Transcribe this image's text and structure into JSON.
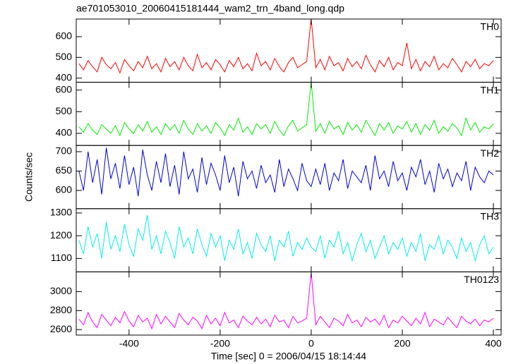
{
  "chart_data": {
    "type": "line",
    "title": "ae701053010_20060415181444_wam2_trn_4band_long.qdp",
    "x_label": "Time [sec] 0 = 2006/04/15 18:14:44",
    "y_label": "Counts/sec",
    "xlim": [
      -516,
      417
    ],
    "xticks": [
      -400,
      -200,
      0,
      200,
      400
    ],
    "x": [
      -510,
      -500,
      -490,
      -480,
      -470,
      -460,
      -450,
      -440,
      -430,
      -420,
      -410,
      -400,
      -390,
      -380,
      -370,
      -360,
      -350,
      -340,
      -330,
      -320,
      -310,
      -300,
      -290,
      -280,
      -270,
      -260,
      -250,
      -240,
      -230,
      -220,
      -210,
      -200,
      -190,
      -180,
      -170,
      -160,
      -150,
      -140,
      -130,
      -120,
      -110,
      -100,
      -90,
      -80,
      -70,
      -60,
      -50,
      -40,
      -30,
      -20,
      -10,
      0,
      10,
      20,
      30,
      40,
      50,
      60,
      70,
      80,
      90,
      100,
      110,
      120,
      130,
      140,
      150,
      160,
      170,
      180,
      190,
      200,
      210,
      220,
      230,
      240,
      250,
      260,
      270,
      280,
      290,
      300,
      310,
      320,
      330,
      340,
      350,
      360,
      370,
      380,
      390,
      400
    ],
    "panels": [
      {
        "name": "TH0",
        "color": "#ff0000",
        "ylim": [
          380,
          685
        ],
        "yticks": [
          400,
          500,
          600
        ],
        "values": [
          470,
          440,
          485,
          455,
          430,
          500,
          465,
          445,
          475,
          425,
          490,
          460,
          435,
          480,
          450,
          505,
          445,
          470,
          430,
          495,
          455,
          480,
          440,
          500,
          460,
          435,
          515,
          450,
          475,
          440,
          490,
          465,
          430,
          485,
          455,
          500,
          445,
          470,
          435,
          520,
          460,
          480,
          440,
          495,
          455,
          430,
          475,
          500,
          450,
          465,
          480,
          685,
          450,
          490,
          440,
          505,
          460,
          475,
          435,
          495,
          455,
          480,
          445,
          510,
          465,
          430,
          485,
          455,
          500,
          440,
          475,
          460,
          570,
          445,
          490,
          435,
          480,
          455,
          505,
          440,
          470,
          450,
          495,
          465,
          430,
          480,
          455,
          490,
          445,
          470,
          460,
          485
        ]
      },
      {
        "name": "TH1",
        "color": "#00ee00",
        "ylim": [
          344,
          636
        ],
        "yticks": [
          400,
          500,
          600
        ],
        "values": [
          430,
          405,
          445,
          415,
          395,
          440,
          420,
          400,
          435,
          390,
          450,
          420,
          400,
          440,
          410,
          455,
          405,
          430,
          395,
          445,
          415,
          440,
          400,
          460,
          420,
          395,
          445,
          410,
          435,
          400,
          450,
          425,
          390,
          440,
          415,
          470,
          405,
          430,
          395,
          445,
          420,
          440,
          400,
          455,
          415,
          390,
          435,
          460,
          410,
          425,
          440,
          636,
          410,
          445,
          400,
          455,
          420,
          435,
          395,
          450,
          415,
          440,
          405,
          460,
          425,
          390,
          445,
          415,
          450,
          400,
          435,
          420,
          455,
          405,
          445,
          395,
          440,
          415,
          460,
          400,
          430,
          410,
          445,
          425,
          390,
          470,
          415,
          450,
          405,
          430,
          420,
          445
        ]
      },
      {
        "name": "TH2",
        "color": "#0000dd",
        "ylim": [
          553,
          716
        ],
        "yticks": [
          600,
          650,
          700
        ],
        "values": [
          650,
          600,
          700,
          620,
          680,
          590,
          710,
          630,
          670,
          605,
          690,
          615,
          660,
          585,
          705,
          640,
          600,
          675,
          620,
          695,
          610,
          665,
          590,
          700,
          630,
          655,
          595,
          685,
          615,
          670,
          640,
          600,
          690,
          620,
          660,
          585,
          675,
          630,
          650,
          605,
          665,
          620,
          640,
          595,
          680,
          610,
          655,
          630,
          600,
          670,
          625,
          610,
          655,
          615,
          670,
          600,
          645,
          625,
          680,
          605,
          650,
          635,
          620,
          665,
          600,
          690,
          630,
          650,
          610,
          675,
          625,
          645,
          600,
          660,
          635,
          680,
          615,
          650,
          595,
          670,
          630,
          655,
          610,
          645,
          625,
          675,
          600,
          660,
          635,
          620,
          650,
          640
        ]
      },
      {
        "name": "TH3",
        "color": "#00eeee",
        "ylim": [
          1041,
          1319
        ],
        "yticks": [
          1100,
          1200,
          1300
        ],
        "values": [
          1180,
          1120,
          1240,
          1150,
          1210,
          1100,
          1260,
          1140,
          1200,
          1130,
          1250,
          1160,
          1110,
          1230,
          1180,
          1290,
          1140,
          1200,
          1120,
          1220,
          1170,
          1100,
          1240,
          1150,
          1190,
          1120,
          1230,
          1160,
          1110,
          1210,
          1150,
          1200,
          1090,
          1180,
          1140,
          1230,
          1120,
          1170,
          1100,
          1210,
          1160,
          1130,
          1200,
          1090,
          1180,
          1150,
          1220,
          1110,
          1170,
          1140,
          1190,
          1150,
          1130,
          1200,
          1100,
          1180,
          1150,
          1220,
          1120,
          1170,
          1090,
          1160,
          1210,
          1130,
          1180,
          1100,
          1150,
          1200,
          1120,
          1170,
          1140,
          1190,
          1110,
          1170,
          1130,
          1210,
          1090,
          1160,
          1140,
          1200,
          1120,
          1180,
          1150,
          1100,
          1190,
          1130,
          1170,
          1090,
          1160,
          1200,
          1120,
          1150
        ]
      },
      {
        "name": "TH0123",
        "color": "#ff00ff",
        "ylim": [
          2542,
          3208
        ],
        "yticks": [
          2600,
          2800,
          3000
        ],
        "values": [
          2710,
          2650,
          2780,
          2680,
          2620,
          2760,
          2700,
          2640,
          2730,
          2670,
          2790,
          2690,
          2630,
          2750,
          2680,
          2720,
          2610,
          2760,
          2660,
          2740,
          2680,
          2620,
          2770,
          2700,
          2650,
          2730,
          2690,
          2610,
          2750,
          2660,
          2720,
          2640,
          2780,
          2670,
          2700,
          2620,
          2740,
          2690,
          2650,
          2730,
          2660,
          2710,
          2630,
          2750,
          2680,
          2700,
          2620,
          2740,
          2670,
          2690,
          2720,
          3200,
          2650,
          2740,
          2680,
          2620,
          2720,
          2690,
          2640,
          2760,
          2670,
          2700,
          2630,
          2730,
          2680,
          2710,
          2650,
          2750,
          2620,
          2700,
          2670,
          2740,
          2690,
          2640,
          2720,
          2660,
          2780,
          2630,
          2710,
          2680,
          2650,
          2730,
          2670,
          2620,
          2740,
          2690,
          2660,
          2710,
          2640,
          2700,
          2680,
          2720
        ]
      }
    ]
  }
}
